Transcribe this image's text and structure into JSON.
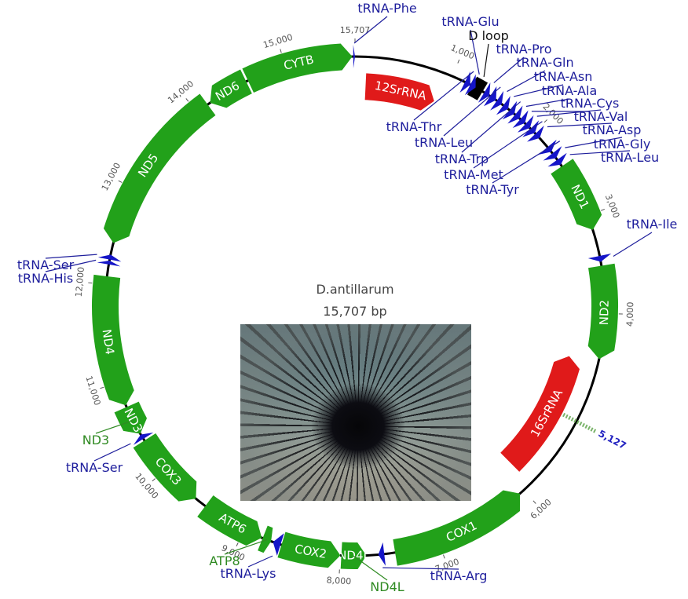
{
  "diagram": {
    "organism": "D.antillarum",
    "length_label": "15,707 bp",
    "total_bp": 15707,
    "colors": {
      "protein": "#22a11a",
      "rrna": "#e01a1a",
      "trna": "#1515c8",
      "dloop": "#000000",
      "backbone": "#000000",
      "label_trna": "#1e1e9c",
      "label_protein": "#2f8a22"
    },
    "ticks": [
      {
        "pos": 1000,
        "label": "1,000"
      },
      {
        "pos": 2000,
        "label": "2,000"
      },
      {
        "pos": 3000,
        "label": "3,000"
      },
      {
        "pos": 4000,
        "label": "4,000"
      },
      {
        "pos": 6000,
        "label": "6,000"
      },
      {
        "pos": 7000,
        "label": "7,000"
      },
      {
        "pos": 8000,
        "label": "8,000"
      },
      {
        "pos": 9000,
        "label": "9,000"
      },
      {
        "pos": 10000,
        "label": "10,000"
      },
      {
        "pos": 11000,
        "label": "11,000"
      },
      {
        "pos": 12000,
        "label": "12,000"
      },
      {
        "pos": 13000,
        "label": "13,000"
      },
      {
        "pos": 14000,
        "label": "14,000"
      },
      {
        "pos": 15000,
        "label": "15,000"
      },
      {
        "pos": 15707,
        "label": "15,707"
      }
    ],
    "marker": {
      "pos": 5127,
      "label": "5,127"
    },
    "features": [
      {
        "name": "12SrRNA",
        "type": "rrna",
        "start": 120,
        "end": 920,
        "strand": 1
      },
      {
        "name": "16SrRNA",
        "type": "rrna",
        "start": 4500,
        "end": 5900,
        "strand": -1
      },
      {
        "name": "D loop",
        "type": "dloop",
        "start": 1220,
        "end": 1340
      },
      {
        "name": "ND1",
        "type": "protein",
        "start": 2440,
        "end": 3150,
        "strand": 1
      },
      {
        "name": "ND2",
        "type": "protein",
        "start": 3520,
        "end": 4460,
        "strand": 1
      },
      {
        "name": "COX1",
        "type": "protein",
        "start": 6050,
        "end": 7450,
        "strand": -1
      },
      {
        "name": "ND4L",
        "type": "protein",
        "start": 7740,
        "end": 7990,
        "strand": -1
      },
      {
        "name": "COX2",
        "type": "protein",
        "start": 8000,
        "end": 8600,
        "strand": -1
      },
      {
        "name": "ATP8",
        "type": "protein",
        "start": 8710,
        "end": 8800,
        "strand": -1
      },
      {
        "name": "ATP6",
        "type": "protein",
        "start": 8810,
        "end": 9460,
        "strand": -1
      },
      {
        "name": "COX3",
        "type": "protein",
        "start": 9580,
        "end": 10360,
        "strand": -1
      },
      {
        "name": "ND3",
        "type": "protein",
        "start": 10440,
        "end": 10740,
        "strand": -1
      },
      {
        "name": "ND4",
        "type": "protein",
        "start": 10760,
        "end": 12080,
        "strand": -1
      },
      {
        "name": "ND5",
        "type": "protein",
        "start": 12420,
        "end": 14130,
        "strand": -1
      },
      {
        "name": "ND6",
        "type": "protein",
        "start": 14160,
        "end": 14580,
        "strand": -1
      },
      {
        "name": "CYTB",
        "type": "protein",
        "start": 14600,
        "end": 15680,
        "strand": 1
      },
      {
        "name": "tRNA-Phe",
        "type": "trna",
        "start": 15690,
        "end": 15707
      },
      {
        "name": "tRNA-Thr",
        "type": "trna",
        "start": 1140,
        "end": 1200
      },
      {
        "name": "tRNA-Glu",
        "type": "trna",
        "start": 1200,
        "end": 1260
      },
      {
        "name": "tRNA-Pro",
        "type": "trna",
        "start": 1360,
        "end": 1420
      },
      {
        "name": "tRNA-Leu",
        "type": "trna",
        "start": 1430,
        "end": 1500
      },
      {
        "name": "tRNA-Gln",
        "type": "trna",
        "start": 1510,
        "end": 1570
      },
      {
        "name": "tRNA-Asn",
        "type": "trna",
        "start": 1590,
        "end": 1650
      },
      {
        "name": "tRNA-Trp",
        "type": "trna",
        "start": 1670,
        "end": 1730
      },
      {
        "name": "tRNA-Ala",
        "type": "trna",
        "start": 1740,
        "end": 1800
      },
      {
        "name": "tRNA-Cys",
        "type": "trna",
        "start": 1810,
        "end": 1870
      },
      {
        "name": "tRNA-Val",
        "type": "trna",
        "start": 1880,
        "end": 1940
      },
      {
        "name": "tRNA-Met",
        "type": "trna",
        "start": 1950,
        "end": 2010
      },
      {
        "name": "tRNA-Asp",
        "type": "trna",
        "start": 2020,
        "end": 2080
      },
      {
        "name": "tRNA-Tyr",
        "type": "trna",
        "start": 2200,
        "end": 2260
      },
      {
        "name": "tRNA-Gly",
        "type": "trna",
        "start": 2280,
        "end": 2340
      },
      {
        "name": "tRNA-Leu",
        "type": "trna",
        "start": 2360,
        "end": 2420
      },
      {
        "name": "tRNA-Ile",
        "type": "trna",
        "start": 3420,
        "end": 3480
      },
      {
        "name": "tRNA-Arg",
        "type": "trna",
        "start": 7560,
        "end": 7620
      },
      {
        "name": "tRNA-Lys",
        "type": "trna",
        "start": 8610,
        "end": 8690
      },
      {
        "name": "tRNA-Ser",
        "type": "trna",
        "start": 10380,
        "end": 10430
      },
      {
        "name": "tRNA-His",
        "type": "trna",
        "start": 12200,
        "end": 12240
      },
      {
        "name": "tRNA-Ser",
        "type": "trna",
        "start": 12250,
        "end": 12300
      }
    ],
    "callouts": [
      {
        "text": "tRNA-Phe",
        "color": "trna",
        "target": 15700
      },
      {
        "text": "tRNA-Glu",
        "color": "trna",
        "target": 1230
      },
      {
        "text": "D loop",
        "color": "dloop",
        "target": 1280
      },
      {
        "text": "tRNA-Pro",
        "color": "trna",
        "target": 1390
      },
      {
        "text": "tRNA-Gln",
        "color": "trna",
        "target": 1540
      },
      {
        "text": "tRNA-Asn",
        "color": "trna",
        "target": 1620
      },
      {
        "text": "tRNA-Ala",
        "color": "trna",
        "target": 1770
      },
      {
        "text": "tRNA-Cys",
        "color": "trna",
        "target": 1840
      },
      {
        "text": "tRNA-Val",
        "color": "trna",
        "target": 1910
      },
      {
        "text": "tRNA-Asp",
        "color": "trna",
        "target": 2050
      },
      {
        "text": "tRNA-Gly",
        "color": "trna",
        "target": 2310
      },
      {
        "text": "tRNA-Leu",
        "color": "trna",
        "target": 2390
      },
      {
        "text": "tRNA-Thr",
        "color": "trna",
        "target": 1170
      },
      {
        "text": "tRNA-Leu",
        "color": "trna",
        "target": 1465
      },
      {
        "text": "tRNA-Trp",
        "color": "trna",
        "target": 1700
      },
      {
        "text": "tRNA-Met",
        "color": "trna",
        "target": 1980
      },
      {
        "text": "tRNA-Tyr",
        "color": "trna",
        "target": 2230
      },
      {
        "text": "tRNA-Ile",
        "color": "trna",
        "target": 3450
      },
      {
        "text": "tRNA-Arg",
        "color": "trna",
        "target": 7590
      },
      {
        "text": "ND4L",
        "color": "protein",
        "target": 7870
      },
      {
        "text": "tRNA-Lys",
        "color": "trna",
        "target": 8650
      },
      {
        "text": "ATP8",
        "color": "protein",
        "target": 8755
      },
      {
        "text": "tRNA-Ser",
        "color": "trna",
        "target": 10405
      },
      {
        "text": "ND3",
        "color": "protein",
        "target": 10590
      },
      {
        "text": "tRNA-His",
        "color": "trna",
        "target": 12220
      },
      {
        "text": "tRNA-Ser",
        "color": "trna",
        "target": 12275
      }
    ]
  }
}
